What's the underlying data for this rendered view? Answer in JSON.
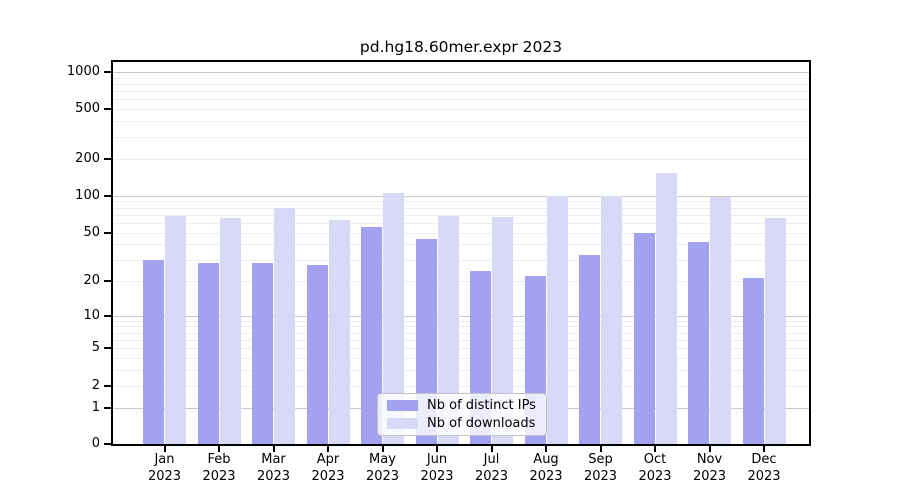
{
  "figure": {
    "title": "pd.hg18.60mer.expr 2023"
  },
  "chart_data": {
    "type": "bar",
    "title": "pd.hg18.60mer.expr 2023",
    "categories": [
      "Jan",
      "Feb",
      "Mar",
      "Apr",
      "May",
      "Jun",
      "Jul",
      "Aug",
      "Sep",
      "Oct",
      "Nov",
      "Dec"
    ],
    "category_year": "2023",
    "series": [
      {
        "name": "Nb of distinct IPs",
        "color": "#a2a2f0",
        "values": [
          30,
          28,
          28,
          27,
          56,
          44,
          24,
          22,
          33,
          50,
          42,
          21
        ]
      },
      {
        "name": "Nb of downloads",
        "color": "#d8d8f7",
        "values": [
          68,
          66,
          79,
          63,
          105,
          69,
          67,
          100,
          99,
          153,
          98,
          66
        ]
      }
    ],
    "yscale": "log1p",
    "yticks": [
      0,
      1,
      2,
      5,
      10,
      20,
      50,
      100,
      200,
      500,
      1000
    ],
    "ylim": [
      0,
      1200
    ],
    "grid": "on",
    "legend_position": "lower center"
  },
  "colors": {
    "major_grid": "#c9c9c9",
    "minor_grid": "#ededed",
    "spine": "#000000",
    "legend_border": "#c4c4c4",
    "background": "#ffffff"
  }
}
